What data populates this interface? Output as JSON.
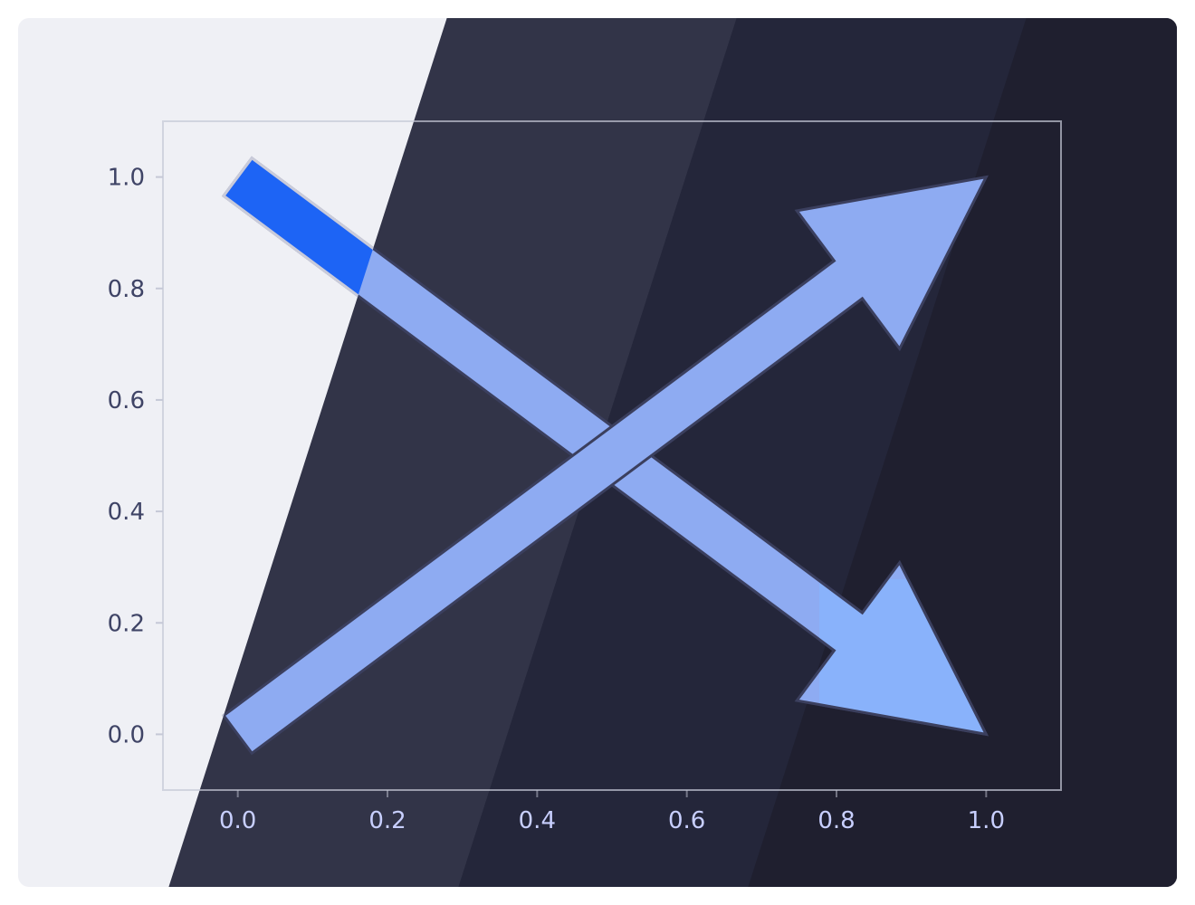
{
  "theme": {
    "page_bg": "#ffffff",
    "card_light": "#eff0f5",
    "band_1": "#323448",
    "band_2": "#24263a",
    "band_3": "#1f1f2f",
    "frame_color": "#c5c8d6",
    "ytick_color": "#3f4466",
    "xtick_color": "#c8cfff",
    "arrow_fill": "#8eabf2",
    "arrow_fill_lower_tip": "#89b2fb",
    "arrow_fill_upper_tail": "#1d64f5",
    "arrow_edge_light": "#c9cbda",
    "arrow_edge_dark": "#3b3f5e"
  },
  "chart_data": {
    "type": "arrows",
    "title": "",
    "xlabel": "",
    "ylabel": "",
    "xlim": [
      -0.1,
      1.1
    ],
    "ylim": [
      -0.1,
      1.1
    ],
    "grid": false,
    "legend": "none",
    "xticks": [
      "0.0",
      "0.2",
      "0.4",
      "0.6",
      "0.8",
      "1.0"
    ],
    "xtick_values": [
      0.0,
      0.2,
      0.4,
      0.6,
      0.8,
      1.0
    ],
    "yticks": [
      "0.0",
      "0.2",
      "0.4",
      "0.6",
      "0.8",
      "1.0"
    ],
    "ytick_values": [
      0.0,
      0.2,
      0.4,
      0.6,
      0.8,
      1.0
    ],
    "arrows": [
      {
        "id": "descending",
        "start": [
          0.0,
          1.0
        ],
        "end": [
          1.0,
          0.0
        ],
        "color": "#8eabf2"
      },
      {
        "id": "ascending",
        "start": [
          0.0,
          0.0
        ],
        "end": [
          1.0,
          1.0
        ],
        "color": "#8eabf2"
      }
    ]
  }
}
